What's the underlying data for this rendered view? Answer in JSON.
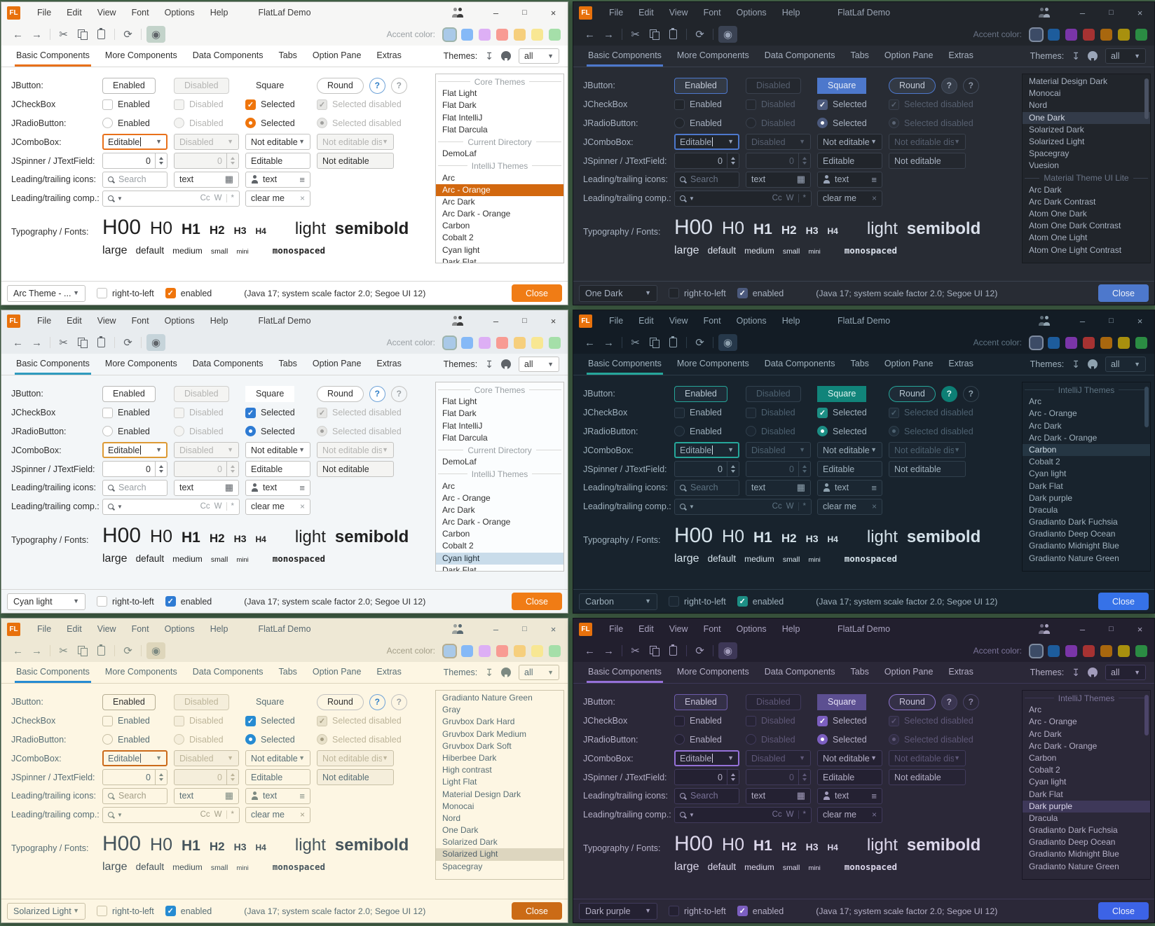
{
  "desktop": {
    "background": "#47694d"
  },
  "titlebar": {
    "logo": "FL",
    "menus": [
      "File",
      "Edit",
      "View",
      "Font",
      "Options",
      "Help"
    ],
    "title": "FlatLaf Demo"
  },
  "toolbar": {
    "accent_label": "Accent color:"
  },
  "tabs": [
    "Basic Components",
    "More Components",
    "Data Components",
    "Tabs",
    "Option Pane",
    "Extras"
  ],
  "themes_panel": {
    "label": "Themes:",
    "filter_value": "all"
  },
  "rows": {
    "jbutton": {
      "label": "JButton:",
      "enabled": "Enabled",
      "disabled": "Disabled",
      "square": "Square",
      "round": "Round",
      "help": "?"
    },
    "jcheckbox": {
      "label": "JCheckBox",
      "enabled": "Enabled",
      "disabled": "Disabled",
      "selected": "Selected",
      "selected_disabled": "Selected disabled"
    },
    "jradiobutton": {
      "label": "JRadioButton:",
      "enabled": "Enabled",
      "disabled": "Disabled",
      "selected": "Selected",
      "selected_disabled": "Selected disabled"
    },
    "jcombobox": {
      "label": "JComboBox:",
      "editable": "Editable",
      "disabled": "Disabled",
      "not_editable": "Not editable",
      "not_editable_disabled": "Not editable dis..."
    },
    "jspinner": {
      "label": "JSpinner / JTextField:",
      "value": "0",
      "disabled_value": "0",
      "editable": "Editable",
      "not_editable": "Not editable"
    },
    "icons_row": {
      "label": "Leading/trailing icons:",
      "search_placeholder": "Search",
      "text1": "text",
      "text2": "text"
    },
    "comp_row": {
      "label": "Leading/trailing comp.:",
      "match_case": "Cc",
      "whole_words": "W",
      "regex": "*",
      "clear_text": "clear me"
    },
    "typography": {
      "label": "Typography / Fonts:",
      "h00": "H00",
      "h0": "H0",
      "h1": "H1",
      "h2": "H2",
      "h3": "H3",
      "h4": "H4",
      "light": "light",
      "semibold": "semibold",
      "large": "large",
      "default": "default",
      "medium": "medium",
      "small": "small",
      "mini": "mini",
      "monospaced": "monospaced"
    }
  },
  "statusbar": {
    "rtl": "right-to-left",
    "enabled": "enabled",
    "status": "(Java 17;  system scale factor 2.0; Segoe UI 12)",
    "close": "Close"
  },
  "accent_palettes": {
    "light": [
      "#a9c9e8",
      "#85b9f7",
      "#ddaff5",
      "#f89b93",
      "#f6cf7d",
      "#f8e793",
      "#a5dfa9"
    ],
    "dark": [
      "#3c4b66",
      "#1d5c9c",
      "#7a35a8",
      "#a63232",
      "#a8670e",
      "#a8900e",
      "#2b8c43"
    ]
  },
  "windows": [
    {
      "id": "arc-orange",
      "theme_name": "Arc - Orange",
      "variant": "light",
      "combo_value": "Arc Theme - ...",
      "scrollbar": false,
      "list": [
        {
          "sep": "Core Themes"
        },
        {
          "t": "Flat Light"
        },
        {
          "t": "Flat Dark"
        },
        {
          "t": "Flat IntelliJ"
        },
        {
          "t": "Flat Darcula"
        },
        {
          "sep": "Current Directory"
        },
        {
          "t": "DemoLaf"
        },
        {
          "sep": "IntelliJ Themes"
        },
        {
          "t": "Arc"
        },
        {
          "t": "Arc - Orange",
          "sel": true
        },
        {
          "t": "Arc Dark"
        },
        {
          "t": "Arc Dark - Orange"
        },
        {
          "t": "Carbon"
        },
        {
          "t": "Cobalt 2"
        },
        {
          "t": "Cyan light"
        },
        {
          "t": "Dark Flat"
        }
      ]
    },
    {
      "id": "one-dark",
      "theme_name": "One Dark",
      "variant": "dark",
      "combo_value": "One Dark",
      "scrollbar": true,
      "list": [
        {
          "t": "Material Design Dark"
        },
        {
          "t": "Monocai"
        },
        {
          "t": "Nord"
        },
        {
          "t": "One Dark",
          "sel": true
        },
        {
          "t": "Solarized Dark"
        },
        {
          "t": "Solarized Light"
        },
        {
          "t": "Spacegray"
        },
        {
          "t": "Vuesion"
        },
        {
          "sep": "Material Theme UI Lite"
        },
        {
          "t": "Arc Dark"
        },
        {
          "t": "Arc Dark Contrast"
        },
        {
          "t": "Atom One Dark"
        },
        {
          "t": "Atom One Dark Contrast"
        },
        {
          "t": "Atom One Light"
        },
        {
          "t": "Atom One Light Contrast"
        }
      ]
    },
    {
      "id": "cyan-light",
      "theme_name": "Cyan light",
      "variant": "light",
      "combo_value": "Cyan light",
      "scrollbar": false,
      "list": [
        {
          "sep": "Core Themes"
        },
        {
          "t": "Flat Light"
        },
        {
          "t": "Flat Dark"
        },
        {
          "t": "Flat IntelliJ"
        },
        {
          "t": "Flat Darcula"
        },
        {
          "sep": "Current Directory"
        },
        {
          "t": "DemoLaf"
        },
        {
          "sep": "IntelliJ Themes"
        },
        {
          "t": "Arc"
        },
        {
          "t": "Arc - Orange"
        },
        {
          "t": "Arc Dark"
        },
        {
          "t": "Arc Dark - Orange"
        },
        {
          "t": "Carbon"
        },
        {
          "t": "Cobalt 2"
        },
        {
          "t": "Cyan light",
          "sel": true
        },
        {
          "t": "Dark Flat"
        }
      ]
    },
    {
      "id": "carbon",
      "theme_name": "Carbon",
      "variant": "dark",
      "combo_value": "Carbon",
      "scrollbar": true,
      "list": [
        {
          "sep": "IntelliJ Themes"
        },
        {
          "t": "Arc"
        },
        {
          "t": "Arc - Orange"
        },
        {
          "t": "Arc Dark"
        },
        {
          "t": "Arc Dark - Orange"
        },
        {
          "t": "Carbon",
          "sel": true
        },
        {
          "t": "Cobalt 2"
        },
        {
          "t": "Cyan light"
        },
        {
          "t": "Dark Flat"
        },
        {
          "t": "Dark purple"
        },
        {
          "t": "Dracula"
        },
        {
          "t": "Gradianto Dark Fuchsia"
        },
        {
          "t": "Gradianto Deep Ocean"
        },
        {
          "t": "Gradianto Midnight Blue"
        },
        {
          "t": "Gradianto Nature Green"
        }
      ]
    },
    {
      "id": "solarized-light",
      "theme_name": "Solarized Light",
      "variant": "light",
      "combo_value": "Solarized Light",
      "scrollbar": false,
      "list": [
        {
          "t": "Gradianto Nature Green"
        },
        {
          "t": "Gray"
        },
        {
          "t": "Gruvbox Dark Hard"
        },
        {
          "t": "Gruvbox Dark Medium"
        },
        {
          "t": "Gruvbox Dark Soft"
        },
        {
          "t": "Hiberbee Dark"
        },
        {
          "t": "High contrast"
        },
        {
          "t": "Light Flat"
        },
        {
          "t": "Material Design Dark"
        },
        {
          "t": "Monocai"
        },
        {
          "t": "Nord"
        },
        {
          "t": "One Dark"
        },
        {
          "t": "Solarized Dark"
        },
        {
          "t": "Solarized Light",
          "sel": true
        },
        {
          "t": "Spacegray"
        }
      ]
    },
    {
      "id": "dark-purple",
      "theme_name": "Dark purple",
      "variant": "dark",
      "combo_value": "Dark purple",
      "scrollbar": true,
      "list": [
        {
          "sep": "IntelliJ Themes"
        },
        {
          "t": "Arc"
        },
        {
          "t": "Arc - Orange"
        },
        {
          "t": "Arc Dark"
        },
        {
          "t": "Arc Dark - Orange"
        },
        {
          "t": "Carbon"
        },
        {
          "t": "Cobalt 2"
        },
        {
          "t": "Cyan light"
        },
        {
          "t": "Dark Flat"
        },
        {
          "t": "Dark purple",
          "sel": true
        },
        {
          "t": "Dracula"
        },
        {
          "t": "Gradianto Dark Fuchsia"
        },
        {
          "t": "Gradianto Deep Ocean"
        },
        {
          "t": "Gradianto Midnight Blue"
        },
        {
          "t": "Gradianto Nature Green"
        }
      ]
    }
  ]
}
